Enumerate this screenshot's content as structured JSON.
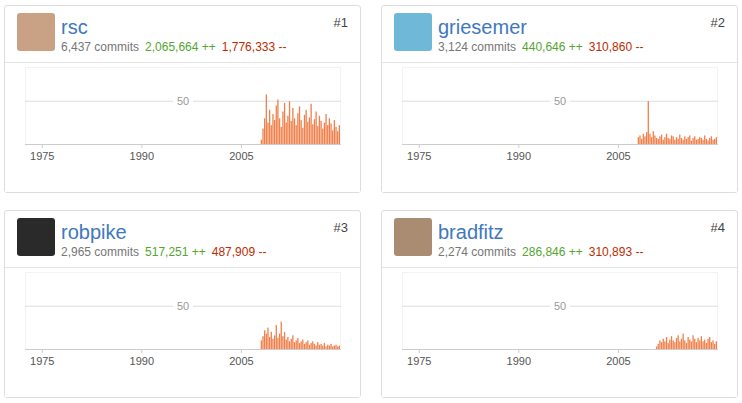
{
  "chart_data": [
    {
      "type": "bar",
      "title": "rsc",
      "annotations": [
        "#1",
        "6,437 commits",
        "2,065,664 ++",
        "1,776,333 --"
      ],
      "x": [
        2008,
        2008.25,
        2008.5,
        2008.75,
        2009,
        2009.25,
        2009.5,
        2009.75,
        2010,
        2010.25,
        2010.5,
        2010.75,
        2011,
        2011.25,
        2011.5,
        2011.75,
        2012,
        2012.25,
        2012.5,
        2012.75,
        2013,
        2013.25,
        2013.5,
        2013.75,
        2014,
        2014.25,
        2014.5,
        2014.75,
        2015,
        2015.25,
        2015.5,
        2015.75,
        2016,
        2016.25,
        2016.5,
        2016.75,
        2017,
        2017.25,
        2017.5,
        2017.75,
        2018,
        2018.25,
        2018.5,
        2018.75,
        2019,
        2019.25,
        2019.5,
        2019.75
      ],
      "values": [
        5,
        18,
        30,
        58,
        25,
        40,
        22,
        35,
        28,
        45,
        52,
        30,
        20,
        38,
        48,
        25,
        33,
        50,
        27,
        42,
        30,
        22,
        36,
        44,
        28,
        19,
        34,
        40,
        26,
        31,
        47,
        23,
        29,
        38,
        21,
        33,
        27,
        18,
        25,
        35,
        22,
        30,
        24,
        16,
        28,
        20,
        15,
        22
      ],
      "color": "#f17f49",
      "xlim": [
        1972.4,
        2020
      ],
      "xticks": [
        1975,
        1990,
        2005
      ],
      "ylim": [
        0,
        90
      ],
      "yticks": [
        50
      ],
      "grid": true
    },
    {
      "type": "bar",
      "title": "griesemer",
      "annotations": [
        "#2",
        "3,124 commits",
        "440,646 ++",
        "310,860 --"
      ],
      "x": [
        2008,
        2008.25,
        2008.5,
        2008.75,
        2009,
        2009.25,
        2009.5,
        2009.75,
        2010,
        2010.25,
        2010.5,
        2010.75,
        2011,
        2011.25,
        2011.5,
        2011.75,
        2012,
        2012.25,
        2012.5,
        2012.75,
        2013,
        2013.25,
        2013.5,
        2013.75,
        2014,
        2014.25,
        2014.5,
        2014.75,
        2015,
        2015.25,
        2015.5,
        2015.75,
        2016,
        2016.25,
        2016.5,
        2016.75,
        2017,
        2017.25,
        2017.5,
        2017.75,
        2018,
        2018.25,
        2018.5,
        2018.75,
        2019,
        2019.25,
        2019.5,
        2019.75
      ],
      "values": [
        8,
        10,
        6,
        12,
        9,
        14,
        50,
        12,
        8,
        15,
        10,
        7,
        6,
        9,
        11,
        5,
        8,
        12,
        7,
        6,
        10,
        9,
        5,
        8,
        6,
        11,
        7,
        5,
        9,
        6,
        8,
        10,
        4,
        7,
        9,
        5,
        6,
        8,
        7,
        5,
        10,
        6,
        4,
        7,
        9,
        5,
        6,
        8
      ],
      "color": "#f17f49",
      "xlim": [
        1972.4,
        2020
      ],
      "xticks": [
        1975,
        1990,
        2005
      ],
      "ylim": [
        0,
        90
      ],
      "yticks": [
        50
      ],
      "grid": true
    },
    {
      "type": "bar",
      "title": "robpike",
      "annotations": [
        "#3",
        "2,965 commits",
        "517,251 ++",
        "487,909 --"
      ],
      "x": [
        2008,
        2008.25,
        2008.5,
        2008.75,
        2009,
        2009.25,
        2009.5,
        2009.75,
        2010,
        2010.25,
        2010.5,
        2010.75,
        2011,
        2011.25,
        2011.5,
        2011.75,
        2012,
        2012.25,
        2012.5,
        2012.75,
        2013,
        2013.25,
        2013.5,
        2013.75,
        2014,
        2014.25,
        2014.5,
        2014.75,
        2015,
        2015.25,
        2015.5,
        2015.75,
        2016,
        2016.25,
        2016.5,
        2016.75,
        2017,
        2017.25,
        2017.5,
        2017.75,
        2018,
        2018.25,
        2018.5,
        2018.75,
        2019,
        2019.25,
        2019.5,
        2019.75
      ],
      "values": [
        10,
        15,
        22,
        18,
        25,
        14,
        20,
        12,
        16,
        28,
        13,
        18,
        32,
        15,
        20,
        11,
        14,
        9,
        12,
        16,
        8,
        10,
        13,
        7,
        9,
        11,
        6,
        8,
        10,
        5,
        7,
        9,
        6,
        4,
        8,
        5,
        6,
        4,
        7,
        3,
        5,
        4,
        6,
        3,
        4,
        5,
        3,
        4
      ],
      "color": "#f17f49",
      "xlim": [
        1972.4,
        2020
      ],
      "xticks": [
        1975,
        1990,
        2005
      ],
      "ylim": [
        0,
        90
      ],
      "yticks": [
        50
      ],
      "grid": true
    },
    {
      "type": "bar",
      "title": "bradfitz",
      "annotations": [
        "#4",
        "2,274 commits",
        "286,846 ++",
        "310,893 --"
      ],
      "x": [
        2008,
        2008.25,
        2008.5,
        2008.75,
        2009,
        2009.25,
        2009.5,
        2009.75,
        2010,
        2010.25,
        2010.5,
        2010.75,
        2011,
        2011.25,
        2011.5,
        2011.75,
        2012,
        2012.25,
        2012.5,
        2012.75,
        2013,
        2013.25,
        2013.5,
        2013.75,
        2014,
        2014.25,
        2014.5,
        2014.75,
        2015,
        2015.25,
        2015.5,
        2015.75,
        2016,
        2016.25,
        2016.5,
        2016.75,
        2017,
        2017.25,
        2017.5,
        2017.75,
        2018,
        2018.25,
        2018.5,
        2018.75,
        2019,
        2019.25,
        2019.5,
        2019.75
      ],
      "values": [
        0,
        0,
        0,
        0,
        0,
        0,
        0,
        0,
        0,
        0,
        0,
        3,
        6,
        10,
        8,
        12,
        9,
        14,
        7,
        11,
        15,
        10,
        8,
        13,
        16,
        9,
        12,
        18,
        10,
        7,
        14,
        11,
        9,
        16,
        12,
        8,
        13,
        10,
        15,
        9,
        11,
        7,
        12,
        14,
        8,
        10,
        6,
        9
      ],
      "color": "#f17f49",
      "xlim": [
        1972.4,
        2020
      ],
      "xticks": [
        1975,
        1990,
        2005
      ],
      "ylim": [
        0,
        90
      ],
      "yticks": [
        50
      ],
      "grid": true
    }
  ]
}
